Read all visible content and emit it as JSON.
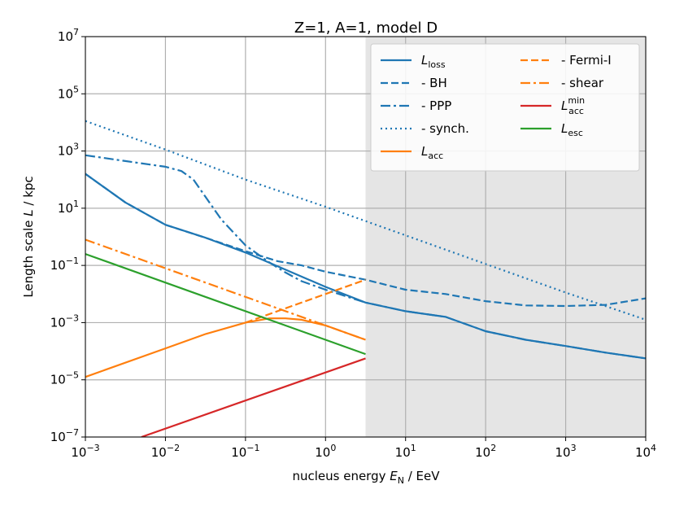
{
  "chart_data": {
    "type": "line",
    "title": "Z=1, A=1, model D",
    "xlabel": {
      "prefix": "nucleus energy ",
      "symbol": "E",
      "sub": "N",
      "unit": " / EeV"
    },
    "ylabel": {
      "prefix": "Length scale ",
      "symbol": "L",
      "unit": " / kpc"
    },
    "xscale": "log",
    "yscale": "log",
    "xlim_log10": [
      -3,
      4
    ],
    "ylim_log10": [
      -7,
      7
    ],
    "grid": true,
    "x_ticks": [
      {
        "base": "10",
        "exp": "−3",
        "log10": -3
      },
      {
        "base": "10",
        "exp": "−2",
        "log10": -2
      },
      {
        "base": "10",
        "exp": "−1",
        "log10": -1
      },
      {
        "base": "10",
        "exp": "0",
        "log10": 0
      },
      {
        "base": "10",
        "exp": "1",
        "log10": 1
      },
      {
        "base": "10",
        "exp": "2",
        "log10": 2
      },
      {
        "base": "10",
        "exp": "3",
        "log10": 3
      },
      {
        "base": "10",
        "exp": "4",
        "log10": 4
      }
    ],
    "y_ticks": [
      {
        "base": "10",
        "exp": "−7",
        "log10": -7
      },
      {
        "base": "10",
        "exp": "−5",
        "log10": -5
      },
      {
        "base": "10",
        "exp": "−3",
        "log10": -3
      },
      {
        "base": "10",
        "exp": "−1",
        "log10": -1
      },
      {
        "base": "10",
        "exp": "1",
        "log10": 1
      },
      {
        "base": "10",
        "exp": "3",
        "log10": 3
      },
      {
        "base": "10",
        "exp": "5",
        "log10": 5
      },
      {
        "base": "10",
        "exp": "7",
        "log10": 7
      }
    ],
    "shaded_region_log10_x": [
      0.5,
      4
    ],
    "shaded_color": "#e5e5e5",
    "legend_position": "top-right",
    "series": [
      {
        "key": "loss",
        "label_main": "L",
        "label_sub": "loss",
        "color": "#1f77b4",
        "dash": "solid",
        "log10_x": [
          -3,
          -2.5,
          -2,
          -1.5,
          -1,
          -0.5,
          0,
          0.5,
          1,
          1.5,
          2,
          2.5,
          3,
          3.5,
          4
        ],
        "log10_y": [
          2.2,
          1.2,
          0.42,
          -0.03,
          -0.55,
          -1.15,
          -1.75,
          -2.3,
          -2.6,
          -2.8,
          -3.3,
          -3.6,
          -3.82,
          -4.05,
          -4.25
        ]
      },
      {
        "key": "bh",
        "label_main": "  - BH",
        "color": "#1f77b4",
        "dash": "9,4",
        "log10_x": [
          -3,
          -2.5,
          -2,
          -1.5,
          -1,
          -0.6,
          -0.3,
          0,
          0.5,
          1,
          1.5,
          2,
          2.5,
          3,
          3.5,
          4
        ],
        "log10_y": [
          2.2,
          1.2,
          0.42,
          -0.03,
          -0.5,
          -0.85,
          -1.0,
          -1.22,
          -1.5,
          -1.85,
          -2.0,
          -2.25,
          -2.4,
          -2.42,
          -2.38,
          -2.15
        ]
      },
      {
        "key": "ppp",
        "label_main": "  - PPP",
        "color": "#1f77b4",
        "dash": "12,4,3,4",
        "log10_x": [
          -3,
          -2.5,
          -2,
          -1.8,
          -1.65,
          -1.5,
          -1.3,
          -1,
          -0.7,
          -0.5,
          -0.3,
          0,
          0.5,
          1,
          1.5,
          2,
          2.5,
          3,
          3.5,
          4
        ],
        "log10_y": [
          2.85,
          2.65,
          2.45,
          2.3,
          2.0,
          1.4,
          0.6,
          -0.3,
          -0.9,
          -1.25,
          -1.55,
          -1.85,
          -2.3,
          -2.6,
          -2.8,
          -3.3,
          -3.6,
          -3.82,
          -4.05,
          -4.25
        ]
      },
      {
        "key": "synch",
        "label_main": "  - synch.",
        "color": "#1f77b4",
        "dash": "2,4",
        "log10_x": [
          -3,
          -2,
          -1,
          0,
          1,
          2,
          3,
          4
        ],
        "log10_y": [
          4.05,
          3.05,
          2.0,
          1.05,
          0.05,
          -0.95,
          -1.95,
          -2.9
        ]
      },
      {
        "key": "acc",
        "label_main": "L",
        "label_sub": "acc",
        "color": "#ff7f0e",
        "dash": "solid",
        "log10_x": [
          -3,
          -2,
          -1.5,
          -1,
          -0.7,
          -0.5,
          -0.3,
          0,
          0.3,
          0.5
        ],
        "log10_y": [
          -4.9,
          -3.9,
          -3.4,
          -3.0,
          -2.85,
          -2.85,
          -2.9,
          -3.1,
          -3.4,
          -3.6
        ]
      },
      {
        "key": "fermi",
        "label_main": "  - Fermi-I",
        "color": "#ff7f0e",
        "dash": "9,4",
        "log10_x": [
          -1,
          0.5
        ],
        "log10_y": [
          -3.0,
          -1.5
        ]
      },
      {
        "key": "shear",
        "label_main": "  - shear",
        "color": "#ff7f0e",
        "dash": "12,4,3,4",
        "log10_x": [
          -3,
          0.5
        ],
        "log10_y": [
          -0.1,
          -3.6
        ]
      },
      {
        "key": "accmin",
        "label_main": "L",
        "label_sub": "acc",
        "label_sup": "min",
        "color": "#d62728",
        "dash": "solid",
        "log10_x": [
          -2.3,
          0.5
        ],
        "log10_y": [
          -7.0,
          -4.25
        ]
      },
      {
        "key": "esc",
        "label_main": "L",
        "label_sub": "esc",
        "color": "#2ca02c",
        "dash": "solid",
        "log10_x": [
          -3,
          0.5
        ],
        "log10_y": [
          -0.6,
          -4.1
        ]
      }
    ]
  }
}
